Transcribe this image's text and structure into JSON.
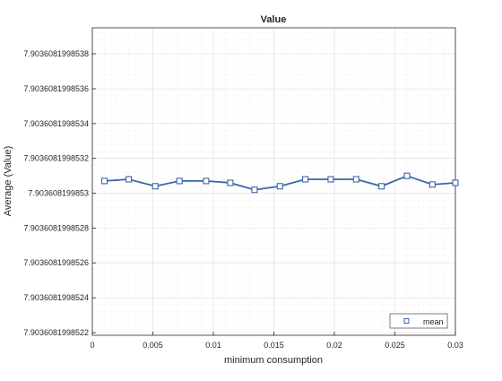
{
  "chart_data": {
    "type": "line",
    "title": "Value",
    "xlabel": "minimum consumption",
    "ylabel": "Average (Value)",
    "xlim": [
      0,
      0.03
    ],
    "ylim": [
      7.903608199852185,
      7.90360819985395
    ],
    "x_ticks": [
      0,
      0.005,
      0.01,
      0.015,
      0.02,
      0.025,
      0.03
    ],
    "x_tick_labels": [
      "0",
      "0.005",
      "0.01",
      "0.015",
      "0.02",
      "0.025",
      "0.03"
    ],
    "y_ticks": [
      7.9036081998522,
      7.9036081998524,
      7.9036081998526,
      7.9036081998528,
      7.903608199853,
      7.9036081998532,
      7.9036081998534,
      7.9036081998536,
      7.9036081998538
    ],
    "y_tick_labels": [
      "7.9036081998522",
      "7.9036081998524",
      "7.9036081998526",
      "7.9036081998528",
      "7.903608199853",
      "7.9036081998532",
      "7.9036081998534",
      "7.9036081998536",
      "7.9036081998538"
    ],
    "grid": true,
    "minor_grid": true,
    "legend_position": "bottom-right",
    "series": [
      {
        "name": "mean",
        "color": "#3a66aa",
        "marker": "square",
        "x": [
          0.001,
          0.003,
          0.0052,
          0.0072,
          0.0094,
          0.0114,
          0.0134,
          0.0155,
          0.0176,
          0.0197,
          0.0218,
          0.0239,
          0.026,
          0.0281,
          0.03
        ],
        "y": [
          7.90360819985307,
          7.90360819985308,
          7.90360819985304,
          7.90360819985307,
          7.90360819985307,
          7.90360819985306,
          7.90360819985302,
          7.90360819985304,
          7.90360819985308,
          7.90360819985308,
          7.90360819985308,
          7.90360819985304,
          7.9036081998531,
          7.90360819985305,
          7.90360819985306
        ]
      }
    ]
  }
}
